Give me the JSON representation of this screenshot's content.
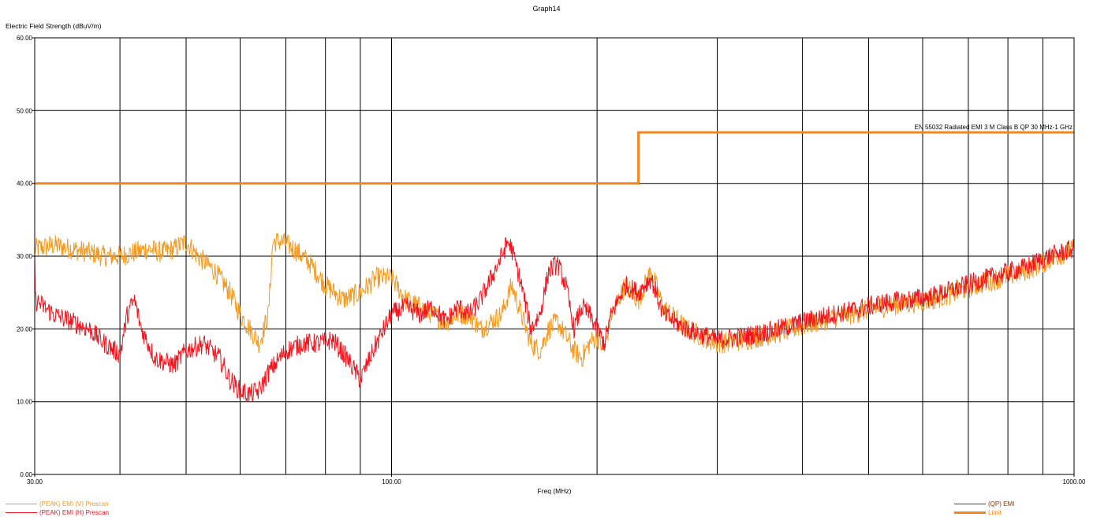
{
  "chart_data": {
    "type": "line",
    "title": "Graph14",
    "xlabel": "Freq (MHz)",
    "ylabel": "Electric Field Strength (dBuV/m)",
    "x_scale": "log",
    "xlim": [
      30,
      1000
    ],
    "ylim": [
      0,
      60
    ],
    "grid": true,
    "y_ticks": [
      "0.00",
      "10.00",
      "20.00",
      "30.00",
      "40.00",
      "50.00",
      "60.00"
    ],
    "x_tick_labels": [
      {
        "value": 30,
        "label": "30.00"
      },
      {
        "value": 100,
        "label": "100.00"
      },
      {
        "value": 1000,
        "label": "1000.00"
      }
    ],
    "x_gridlines": [
      40,
      50,
      60,
      70,
      80,
      90,
      100,
      200,
      300,
      400,
      500,
      600,
      700,
      800,
      900
    ],
    "limit_label": "EN 55032 Radiated EMI 3 M Class B QP 30 MHz-1 GHz",
    "series": [
      {
        "name": "(PEAK) EMI (V) Prescan",
        "color": "#f39a20",
        "points": [
          [
            30,
            31
          ],
          [
            32,
            31.5
          ],
          [
            34,
            31
          ],
          [
            36,
            30.5
          ],
          [
            38,
            30
          ],
          [
            40,
            30
          ],
          [
            42,
            30.5
          ],
          [
            44,
            31
          ],
          [
            46,
            30.5
          ],
          [
            48,
            31
          ],
          [
            50,
            32
          ],
          [
            52,
            30
          ],
          [
            55,
            28
          ],
          [
            58,
            25
          ],
          [
            60,
            22
          ],
          [
            62,
            20
          ],
          [
            64,
            18
          ],
          [
            66,
            22
          ],
          [
            67,
            32
          ],
          [
            69,
            32
          ],
          [
            72,
            31
          ],
          [
            76,
            29
          ],
          [
            80,
            26
          ],
          [
            85,
            24
          ],
          [
            90,
            25
          ],
          [
            95,
            27
          ],
          [
            100,
            27
          ],
          [
            105,
            24
          ],
          [
            110,
            23
          ],
          [
            115,
            22
          ],
          [
            120,
            21
          ],
          [
            125,
            22
          ],
          [
            130,
            22
          ],
          [
            135,
            20
          ],
          [
            140,
            21
          ],
          [
            145,
            22
          ],
          [
            150,
            26
          ],
          [
            155,
            22
          ],
          [
            160,
            18
          ],
          [
            165,
            17
          ],
          [
            170,
            20
          ],
          [
            175,
            21
          ],
          [
            180,
            19
          ],
          [
            185,
            17
          ],
          [
            190,
            16
          ],
          [
            195,
            18
          ],
          [
            200,
            19
          ],
          [
            205,
            17
          ],
          [
            210,
            22
          ],
          [
            220,
            26
          ],
          [
            230,
            24
          ],
          [
            240,
            28
          ],
          [
            250,
            23
          ],
          [
            270,
            20
          ],
          [
            300,
            18
          ],
          [
            330,
            18.5
          ],
          [
            370,
            19.5
          ],
          [
            420,
            21
          ],
          [
            470,
            22
          ],
          [
            520,
            23
          ],
          [
            570,
            23.5
          ],
          [
            620,
            24
          ],
          [
            670,
            25
          ],
          [
            720,
            26
          ],
          [
            780,
            27
          ],
          [
            850,
            28
          ],
          [
            920,
            29.5
          ],
          [
            1000,
            31
          ]
        ]
      },
      {
        "name": "(PEAK) EMI (H) Prescan",
        "color": "#f0141e",
        "points": [
          [
            30,
            24
          ],
          [
            32,
            22
          ],
          [
            34,
            21
          ],
          [
            36,
            20
          ],
          [
            38,
            18
          ],
          [
            40,
            16.5
          ],
          [
            41,
            22
          ],
          [
            42,
            24
          ],
          [
            43,
            20
          ],
          [
            45,
            16
          ],
          [
            48,
            15
          ],
          [
            50,
            17
          ],
          [
            53,
            18
          ],
          [
            56,
            16
          ],
          [
            58,
            13
          ],
          [
            60,
            11.5
          ],
          [
            62,
            11
          ],
          [
            64,
            11.5
          ],
          [
            66,
            14
          ],
          [
            70,
            17
          ],
          [
            74,
            18
          ],
          [
            78,
            18
          ],
          [
            82,
            18.5
          ],
          [
            86,
            16
          ],
          [
            90,
            13
          ],
          [
            95,
            18
          ],
          [
            100,
            22
          ],
          [
            105,
            23
          ],
          [
            110,
            22
          ],
          [
            115,
            23
          ],
          [
            120,
            21
          ],
          [
            125,
            23
          ],
          [
            130,
            22
          ],
          [
            135,
            24
          ],
          [
            140,
            27
          ],
          [
            145,
            30
          ],
          [
            148,
            32
          ],
          [
            150,
            31
          ],
          [
            155,
            26
          ],
          [
            160,
            20
          ],
          [
            165,
            22
          ],
          [
            170,
            28
          ],
          [
            175,
            29
          ],
          [
            180,
            26
          ],
          [
            185,
            20
          ],
          [
            190,
            23
          ],
          [
            195,
            22
          ],
          [
            200,
            20
          ],
          [
            205,
            18
          ],
          [
            210,
            22
          ],
          [
            220,
            26
          ],
          [
            230,
            25
          ],
          [
            240,
            27
          ],
          [
            250,
            22
          ],
          [
            270,
            20
          ],
          [
            300,
            18.5
          ],
          [
            330,
            19
          ],
          [
            370,
            20
          ],
          [
            420,
            21.5
          ],
          [
            470,
            22.5
          ],
          [
            520,
            23.5
          ],
          [
            570,
            24
          ],
          [
            620,
            24.5
          ],
          [
            670,
            25.5
          ],
          [
            720,
            26.5
          ],
          [
            780,
            27.5
          ],
          [
            850,
            28.5
          ],
          [
            920,
            30
          ],
          [
            1000,
            31
          ]
        ]
      },
      {
        "name": "(QP) EMI",
        "color": "#7a3310",
        "points": []
      },
      {
        "name": "Limit",
        "color": "#f5841f",
        "points": [
          [
            30,
            40
          ],
          [
            230,
            40
          ],
          [
            230,
            47
          ],
          [
            1000,
            47
          ]
        ]
      }
    ]
  }
}
